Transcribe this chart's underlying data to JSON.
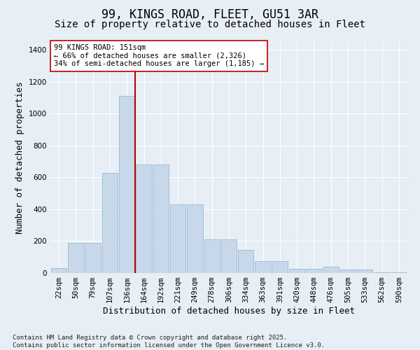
{
  "title_line1": "99, KINGS ROAD, FLEET, GU51 3AR",
  "title_line2": "Size of property relative to detached houses in Fleet",
  "xlabel": "Distribution of detached houses by size in Fleet",
  "ylabel": "Number of detached properties",
  "categories": [
    "22sqm",
    "50sqm",
    "79sqm",
    "107sqm",
    "136sqm",
    "164sqm",
    "192sqm",
    "221sqm",
    "249sqm",
    "278sqm",
    "306sqm",
    "334sqm",
    "363sqm",
    "391sqm",
    "420sqm",
    "448sqm",
    "476sqm",
    "505sqm",
    "533sqm",
    "562sqm",
    "590sqm"
  ],
  "values": [
    30,
    190,
    190,
    630,
    1110,
    680,
    680,
    430,
    430,
    210,
    210,
    145,
    75,
    75,
    25,
    25,
    40,
    20,
    20,
    5,
    5
  ],
  "bar_color": "#c8d8ea",
  "bar_edge_color": "#92bcd4",
  "vline_color": "#bb0000",
  "vline_x_index": 4.5,
  "annotation_text": "99 KINGS ROAD: 151sqm\n← 66% of detached houses are smaller (2,326)\n34% of semi-detached houses are larger (1,185) →",
  "annotation_box_facecolor": "#ffffff",
  "annotation_box_edgecolor": "#bb0000",
  "ylim": [
    0,
    1450
  ],
  "yticks": [
    0,
    200,
    400,
    600,
    800,
    1000,
    1200,
    1400
  ],
  "background_color": "#e8eef5",
  "grid_color": "#ffffff",
  "footer_line1": "Contains HM Land Registry data © Crown copyright and database right 2025.",
  "footer_line2": "Contains public sector information licensed under the Open Government Licence v3.0.",
  "title_fontsize": 12,
  "subtitle_fontsize": 10,
  "tick_fontsize": 7.5,
  "axis_label_fontsize": 9,
  "annotation_fontsize": 7.5,
  "footer_fontsize": 6.5
}
